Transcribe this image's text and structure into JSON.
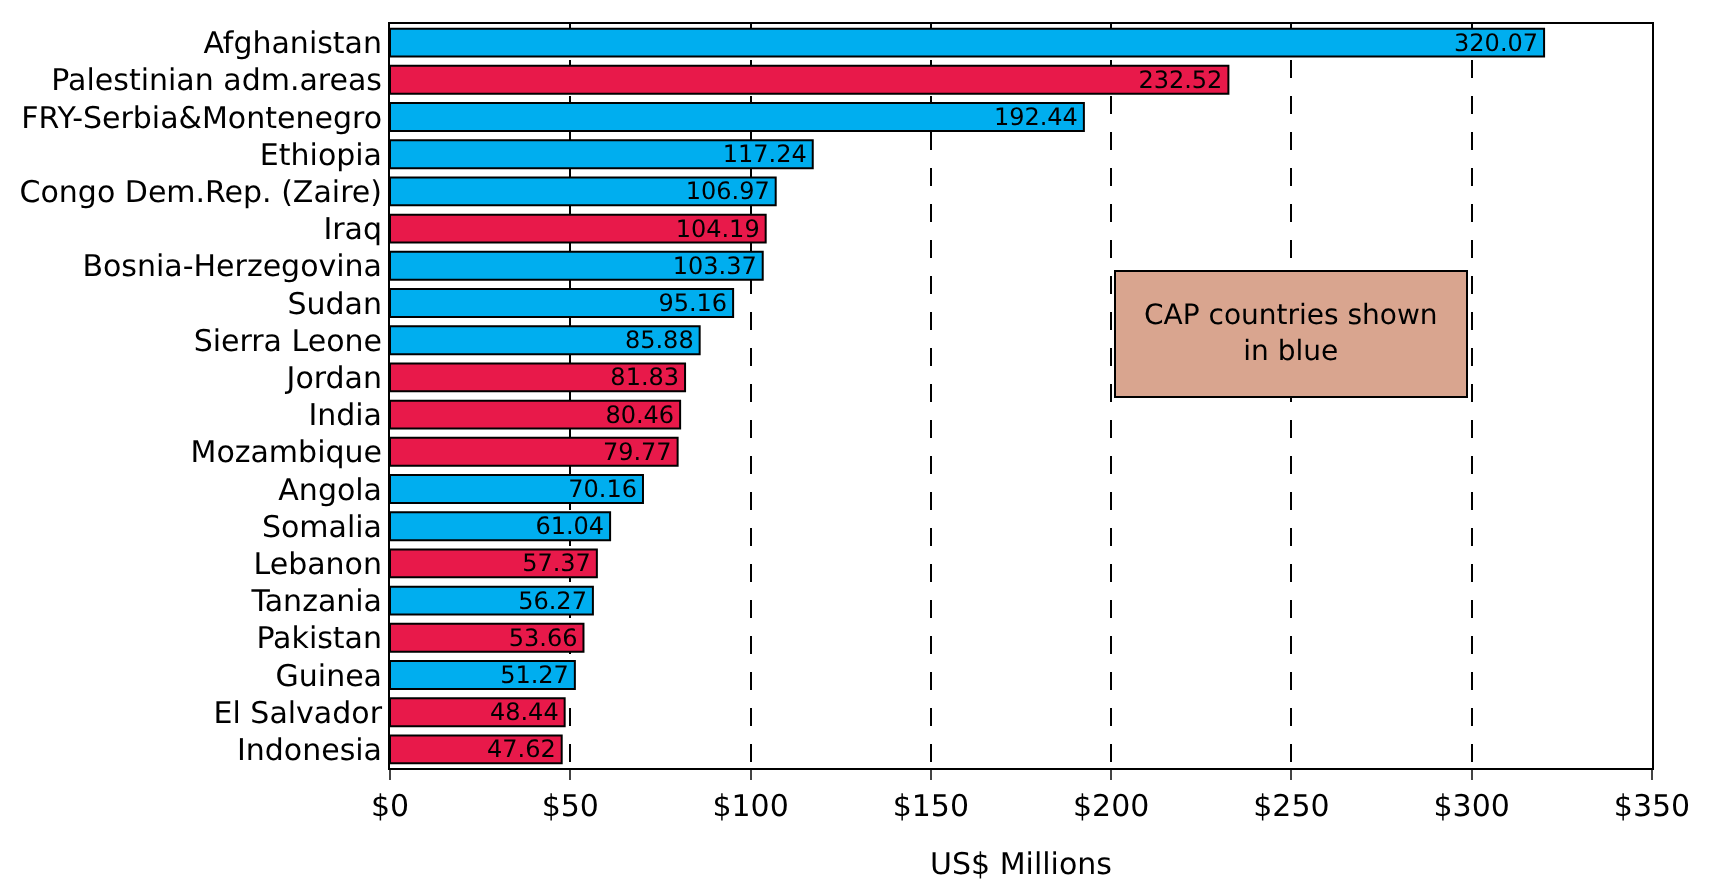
{
  "chart_data": {
    "type": "bar",
    "orientation": "horizontal",
    "xlabel": "US$ Millions",
    "categories": [
      "Afghanistan",
      "Palestinian adm.areas",
      "FRY-Serbia&Montenegro",
      "Ethiopia",
      "Congo Dem.Rep. (Zaire)",
      "Iraq",
      "Bosnia-Herzegovina",
      "Sudan",
      "Sierra Leone",
      "Jordan",
      "India",
      "Mozambique",
      "Angola",
      "Somalia",
      "Lebanon",
      "Tanzania",
      "Pakistan",
      "Guinea",
      "El Salvador",
      "Indonesia"
    ],
    "values": [
      320.07,
      232.52,
      192.44,
      117.24,
      106.97,
      104.19,
      103.37,
      95.16,
      85.88,
      81.83,
      80.46,
      79.77,
      70.16,
      61.04,
      57.37,
      56.27,
      53.66,
      51.27,
      48.44,
      47.62
    ],
    "colors": [
      "#00aeef",
      "#e8194a",
      "#00aeef",
      "#00aeef",
      "#00aeef",
      "#e8194a",
      "#00aeef",
      "#00aeef",
      "#00aeef",
      "#e8194a",
      "#e8194a",
      "#e8194a",
      "#00aeef",
      "#00aeef",
      "#e8194a",
      "#00aeef",
      "#e8194a",
      "#00aeef",
      "#e8194a",
      "#e8194a"
    ],
    "data_labels": true,
    "xlim": [
      0,
      350
    ],
    "xticks": [
      {
        "value": 0,
        "label": "$0"
      },
      {
        "value": 50,
        "label": "$50"
      },
      {
        "value": 100,
        "label": "$100"
      },
      {
        "value": 150,
        "label": "$150"
      },
      {
        "value": 200,
        "label": "$200"
      },
      {
        "value": 250,
        "label": "$250"
      },
      {
        "value": 300,
        "label": "$300"
      },
      {
        "value": 350,
        "label": "$350"
      }
    ],
    "grid": "x",
    "annotations": [
      "CAP countries shown\nin blue"
    ]
  }
}
